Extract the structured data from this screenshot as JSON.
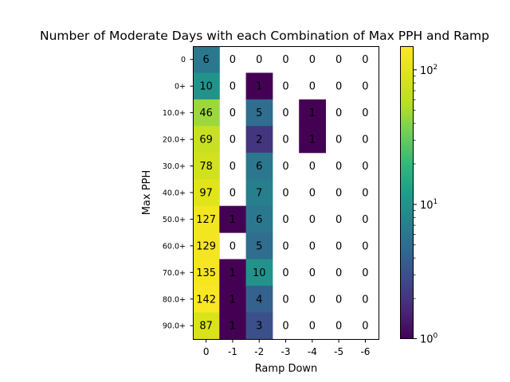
{
  "chart_data": {
    "type": "heatmap",
    "title": "Number of Moderate Days with each Combination of Max PPH and Ramp",
    "xlabel": "Ramp Down",
    "ylabel": "Max PPH",
    "x_categories": [
      "0",
      "-1",
      "-2",
      "-3",
      "-4",
      "-5",
      "-6"
    ],
    "y_categories": [
      "0",
      "0+",
      "10.0+",
      "20.0+",
      "30.0+",
      "40.0+",
      "50.0+",
      "60.0+",
      "70.0+",
      "80.0+",
      "90.0+"
    ],
    "values": [
      [
        6,
        0,
        0,
        0,
        0,
        0,
        0
      ],
      [
        10,
        0,
        1,
        0,
        0,
        0,
        0
      ],
      [
        46,
        0,
        5,
        0,
        1,
        0,
        0
      ],
      [
        69,
        0,
        2,
        0,
        1,
        0,
        0
      ],
      [
        78,
        0,
        6,
        0,
        0,
        0,
        0
      ],
      [
        97,
        0,
        7,
        0,
        0,
        0,
        0
      ],
      [
        127,
        1,
        6,
        0,
        0,
        0,
        0
      ],
      [
        129,
        0,
        5,
        0,
        0,
        0,
        0
      ],
      [
        135,
        1,
        10,
        0,
        0,
        0,
        0
      ],
      [
        142,
        1,
        4,
        0,
        0,
        0,
        0
      ],
      [
        87,
        1,
        3,
        0,
        0,
        0,
        0
      ]
    ],
    "colorscale": "viridis",
    "color_scale_type": "log",
    "color_range": [
      1,
      150
    ],
    "zero_cells": "blank",
    "colorbar": {
      "ticks": [
        "10^0",
        "10^1",
        "10^2"
      ]
    }
  }
}
